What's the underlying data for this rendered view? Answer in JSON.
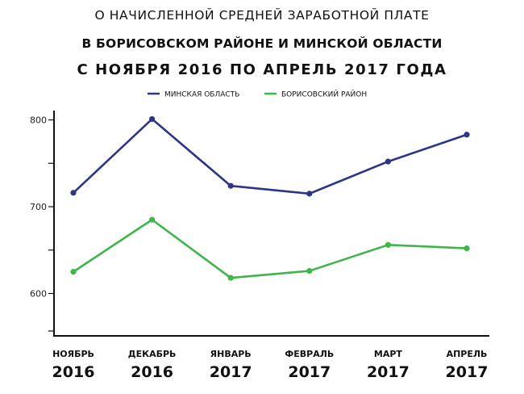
{
  "title_lines": [
    "О НАЧИСЛЕННОЙ СРЕДНЕЙ ЗАРАБОТНОЙ ПЛАТЕ",
    "В БОРИСОВСКОМ РАЙОНЕ И МИНСКОЙ ОБЛАСТИ",
    "С НОЯБРЯ 2016 ПО АПРЕЛЬ 2017 ГОДА"
  ],
  "chart_data": {
    "type": "line",
    "title": "О НАЧИСЛЕННОЙ СРЕДНЕЙ ЗАРАБОТНОЙ ПЛАТЕ В БОРИСОВСКОМ РАЙОНЕ И МИНСКОЙ ОБЛАСТИ С НОЯБРЯ 2016 ПО АПРЕЛЬ 2017 ГОДА",
    "categories": [
      {
        "month": "НОЯБРЬ",
        "year": "2016"
      },
      {
        "month": "ДЕКАБРЬ",
        "year": "2016"
      },
      {
        "month": "ЯНВАРЬ",
        "year": "2017"
      },
      {
        "month": "ФЕВРАЛЬ",
        "year": "2017"
      },
      {
        "month": "МАРТ",
        "year": "2017"
      },
      {
        "month": "АПРЕЛЬ",
        "year": "2017"
      }
    ],
    "series": [
      {
        "name": "МИНСКАЯ ОБЛАСТЬ",
        "color": "#2e3586",
        "values": [
          716,
          801,
          724,
          715,
          752,
          783
        ]
      },
      {
        "name": "БОРИСОВСКИЙ РАЙОН",
        "color": "#3fb54a",
        "values": [
          625,
          685,
          618,
          626,
          656,
          652
        ]
      }
    ],
    "yticks": [
      600,
      700,
      800
    ],
    "ylim": [
      550,
      810
    ],
    "grid": false,
    "legend": "top-center",
    "xlabel": "",
    "ylabel": ""
  }
}
